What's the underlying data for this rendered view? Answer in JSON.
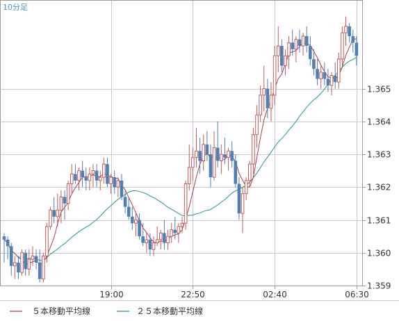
{
  "chart_data": {
    "type": "candlestick",
    "timeframe_label": "10分足",
    "ylim": [
      1.359,
      1.3677
    ],
    "y_ticks": [
      "1.365",
      "1.364",
      "1.363",
      "1.362",
      "1.361",
      "1.360",
      "1.359"
    ],
    "x_ticks": [
      {
        "label": "19:00",
        "index": 30
      },
      {
        "label": "22:50",
        "index": 53
      },
      {
        "label": "02:40",
        "index": 76
      },
      {
        "label": "06:30",
        "index": 99
      }
    ],
    "legend": [
      {
        "name": "５本移動平均線",
        "color": "#b03a48"
      },
      {
        "name": "２５本移動平均線",
        "color": "#1e9e76"
      }
    ],
    "colors": {
      "up": "#c25a5a",
      "down": "#4f7fb5",
      "ma5": "#b03a48",
      "ma25": "#1e9e76",
      "grid": "#c9c9c9",
      "frame": "#9a9a9a"
    },
    "candles": [
      [
        1.3605,
        1.3606,
        1.3597,
        1.3604
      ],
      [
        1.3604,
        1.3605,
        1.3598,
        1.3602
      ],
      [
        1.3602,
        1.3603,
        1.3593,
        1.3596
      ],
      [
        1.3596,
        1.3599,
        1.3592,
        1.3597
      ],
      [
        1.3597,
        1.3599,
        1.3592,
        1.3594
      ],
      [
        1.3594,
        1.3601,
        1.3593,
        1.36
      ],
      [
        1.36,
        1.3601,
        1.3593,
        1.3595
      ],
      [
        1.3595,
        1.3601,
        1.3593,
        1.3598
      ],
      [
        1.3598,
        1.3602,
        1.3596,
        1.3599
      ],
      [
        1.3599,
        1.3601,
        1.3595,
        1.3597
      ],
      [
        1.3597,
        1.3601,
        1.3591,
        1.3592
      ],
      [
        1.3592,
        1.36,
        1.3591,
        1.3599
      ],
      [
        1.3599,
        1.3609,
        1.3597,
        1.3608
      ],
      [
        1.3608,
        1.3614,
        1.3607,
        1.3613
      ],
      [
        1.3613,
        1.3617,
        1.3609,
        1.3611
      ],
      [
        1.3611,
        1.3618,
        1.3608,
        1.3613
      ],
      [
        1.3613,
        1.3619,
        1.3609,
        1.3617
      ],
      [
        1.3617,
        1.3619,
        1.361,
        1.3615
      ],
      [
        1.3615,
        1.3622,
        1.3613,
        1.3621
      ],
      [
        1.3621,
        1.3627,
        1.3618,
        1.3624
      ],
      [
        1.3624,
        1.3627,
        1.3621,
        1.3622
      ],
      [
        1.3622,
        1.3626,
        1.3619,
        1.3625
      ],
      [
        1.3625,
        1.3628,
        1.362,
        1.3623
      ],
      [
        1.3623,
        1.3626,
        1.3619,
        1.3622
      ],
      [
        1.3622,
        1.3626,
        1.3619,
        1.3624
      ],
      [
        1.3624,
        1.3627,
        1.362,
        1.3625
      ],
      [
        1.3625,
        1.3627,
        1.362,
        1.3622
      ],
      [
        1.3622,
        1.3625,
        1.3619,
        1.3623
      ],
      [
        1.3623,
        1.3629,
        1.3621,
        1.3627
      ],
      [
        1.3627,
        1.3629,
        1.362,
        1.3621
      ],
      [
        1.3621,
        1.3624,
        1.3618,
        1.3623
      ],
      [
        1.3623,
        1.3625,
        1.3618,
        1.362
      ],
      [
        1.362,
        1.3623,
        1.3617,
        1.3622
      ],
      [
        1.3622,
        1.3624,
        1.3616,
        1.3617
      ],
      [
        1.3617,
        1.3619,
        1.3612,
        1.3614
      ],
      [
        1.3614,
        1.3617,
        1.361,
        1.3611
      ],
      [
        1.3611,
        1.3614,
        1.3607,
        1.3609
      ],
      [
        1.3609,
        1.3612,
        1.3605,
        1.361
      ],
      [
        1.361,
        1.3612,
        1.3604,
        1.3605
      ],
      [
        1.3605,
        1.3609,
        1.3602,
        1.3603
      ],
      [
        1.3603,
        1.3606,
        1.36,
        1.3604
      ],
      [
        1.3604,
        1.3606,
        1.3599,
        1.3601
      ],
      [
        1.3601,
        1.3605,
        1.3599,
        1.3603
      ],
      [
        1.3603,
        1.3608,
        1.3602,
        1.3604
      ],
      [
        1.3604,
        1.3607,
        1.3601,
        1.3606
      ],
      [
        1.3606,
        1.361,
        1.3601,
        1.3603
      ],
      [
        1.3603,
        1.3607,
        1.3601,
        1.3605
      ],
      [
        1.3605,
        1.3609,
        1.3603,
        1.3607
      ],
      [
        1.3607,
        1.3611,
        1.3604,
        1.3606
      ],
      [
        1.3606,
        1.3609,
        1.3603,
        1.3608
      ],
      [
        1.3608,
        1.3611,
        1.3606,
        1.3609
      ],
      [
        1.3609,
        1.3622,
        1.3607,
        1.3621
      ],
      [
        1.3621,
        1.3633,
        1.3619,
        1.3626
      ],
      [
        1.3626,
        1.3632,
        1.3622,
        1.3629
      ],
      [
        1.3629,
        1.3638,
        1.3626,
        1.3631
      ],
      [
        1.3631,
        1.3635,
        1.3624,
        1.3628
      ],
      [
        1.3628,
        1.3636,
        1.3625,
        1.3633
      ],
      [
        1.3633,
        1.3637,
        1.3628,
        1.363
      ],
      [
        1.363,
        1.3633,
        1.362,
        1.3623
      ],
      [
        1.3623,
        1.3637,
        1.3622,
        1.3632
      ],
      [
        1.3632,
        1.364,
        1.3626,
        1.3628
      ],
      [
        1.3628,
        1.3633,
        1.3624,
        1.363
      ],
      [
        1.363,
        1.3635,
        1.3627,
        1.3629
      ],
      [
        1.3629,
        1.3632,
        1.3625,
        1.3631
      ],
      [
        1.3631,
        1.3634,
        1.3626,
        1.3628
      ],
      [
        1.3628,
        1.363,
        1.362,
        1.3621
      ],
      [
        1.3621,
        1.3623,
        1.361,
        1.3612
      ],
      [
        1.3612,
        1.362,
        1.3606,
        1.3618
      ],
      [
        1.3618,
        1.3623,
        1.3616,
        1.3622
      ],
      [
        1.3622,
        1.3628,
        1.362,
        1.3627
      ],
      [
        1.3627,
        1.3638,
        1.3624,
        1.3636
      ],
      [
        1.3636,
        1.3645,
        1.3632,
        1.3642
      ],
      [
        1.3642,
        1.3651,
        1.364,
        1.3648
      ],
      [
        1.3648,
        1.3657,
        1.3643,
        1.365
      ],
      [
        1.365,
        1.3653,
        1.3641,
        1.3644
      ],
      [
        1.3644,
        1.3652,
        1.364,
        1.3648
      ],
      [
        1.3648,
        1.3663,
        1.3645,
        1.366
      ],
      [
        1.366,
        1.3669,
        1.3655,
        1.3663
      ],
      [
        1.3663,
        1.3665,
        1.3655,
        1.3657
      ],
      [
        1.3657,
        1.3662,
        1.3654,
        1.366
      ],
      [
        1.366,
        1.3666,
        1.3656,
        1.3664
      ],
      [
        1.3664,
        1.3668,
        1.366,
        1.3662
      ],
      [
        1.3662,
        1.3666,
        1.3658,
        1.3665
      ],
      [
        1.3665,
        1.3668,
        1.3661,
        1.3663
      ],
      [
        1.3663,
        1.3667,
        1.366,
        1.3666
      ],
      [
        1.3666,
        1.3669,
        1.3661,
        1.3663
      ],
      [
        1.3663,
        1.3666,
        1.3657,
        1.3659
      ],
      [
        1.3659,
        1.3662,
        1.3654,
        1.3656
      ],
      [
        1.3656,
        1.3659,
        1.3651,
        1.3653
      ],
      [
        1.3653,
        1.3657,
        1.365,
        1.3655
      ],
      [
        1.3655,
        1.3658,
        1.3651,
        1.3653
      ],
      [
        1.3653,
        1.3656,
        1.3649,
        1.3651
      ],
      [
        1.3651,
        1.3655,
        1.3648,
        1.3654
      ],
      [
        1.3654,
        1.3658,
        1.365,
        1.3652
      ],
      [
        1.3652,
        1.3661,
        1.365,
        1.3659
      ],
      [
        1.3659,
        1.3669,
        1.3657,
        1.3667
      ],
      [
        1.3667,
        1.3672,
        1.3663,
        1.3669
      ],
      [
        1.3669,
        1.367,
        1.3664,
        1.3666
      ],
      [
        1.3666,
        1.3668,
        1.3661,
        1.3664
      ],
      [
        1.3664,
        1.3666,
        1.3657,
        1.366
      ]
    ]
  }
}
